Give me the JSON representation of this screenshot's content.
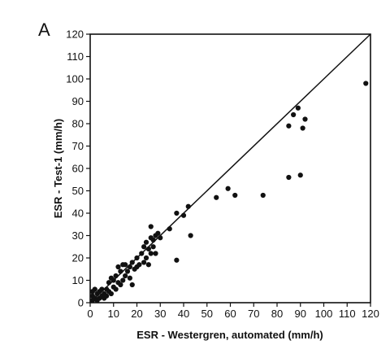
{
  "chart_data": {
    "type": "scatter",
    "panel_label": "A",
    "title": "",
    "xlabel": "ESR - Westergren, automated (mm/h)",
    "ylabel": "ESR - Test-1 (mm/h)",
    "xlim": [
      0,
      120
    ],
    "ylim": [
      0,
      120
    ],
    "xticks": [
      0,
      10,
      20,
      30,
      40,
      50,
      60,
      70,
      80,
      90,
      100,
      110,
      120
    ],
    "yticks": [
      0,
      10,
      20,
      30,
      40,
      50,
      60,
      70,
      80,
      90,
      100,
      110,
      120
    ],
    "grid": false,
    "legend": "none",
    "reference_line": {
      "from": [
        0,
        0
      ],
      "to": [
        120,
        120
      ]
    },
    "points": [
      [
        1,
        1
      ],
      [
        1,
        3
      ],
      [
        1,
        5
      ],
      [
        2,
        2
      ],
      [
        2,
        6
      ],
      [
        3,
        1
      ],
      [
        3,
        4
      ],
      [
        4,
        2
      ],
      [
        4,
        5
      ],
      [
        5,
        3
      ],
      [
        5,
        6
      ],
      [
        6,
        2
      ],
      [
        6,
        4
      ],
      [
        7,
        3
      ],
      [
        7,
        6
      ],
      [
        8,
        5
      ],
      [
        8,
        9
      ],
      [
        9,
        4
      ],
      [
        9,
        11
      ],
      [
        10,
        7
      ],
      [
        10,
        10
      ],
      [
        11,
        6
      ],
      [
        11,
        12
      ],
      [
        12,
        9
      ],
      [
        12,
        16
      ],
      [
        13,
        8
      ],
      [
        13,
        14
      ],
      [
        14,
        10
      ],
      [
        14,
        17
      ],
      [
        15,
        12
      ],
      [
        15,
        17
      ],
      [
        16,
        14
      ],
      [
        17,
        11
      ],
      [
        17,
        16
      ],
      [
        18,
        8
      ],
      [
        18,
        18
      ],
      [
        19,
        15
      ],
      [
        20,
        16
      ],
      [
        20,
        20
      ],
      [
        21,
        17
      ],
      [
        22,
        22
      ],
      [
        23,
        18
      ],
      [
        23,
        25
      ],
      [
        24,
        20
      ],
      [
        24,
        27
      ],
      [
        25,
        24
      ],
      [
        25,
        17
      ],
      [
        26,
        22
      ],
      [
        26,
        29
      ],
      [
        26,
        34
      ],
      [
        27,
        28
      ],
      [
        27,
        25
      ],
      [
        28,
        22
      ],
      [
        28,
        30
      ],
      [
        29,
        31
      ],
      [
        30,
        29
      ],
      [
        34,
        33
      ],
      [
        37,
        19
      ],
      [
        37,
        40
      ],
      [
        40,
        39
      ],
      [
        42,
        43
      ],
      [
        43,
        30
      ],
      [
        54,
        47
      ],
      [
        59,
        51
      ],
      [
        62,
        48
      ],
      [
        74,
        48
      ],
      [
        85,
        79
      ],
      [
        85,
        56
      ],
      [
        87,
        84
      ],
      [
        89,
        87
      ],
      [
        90,
        57
      ],
      [
        91,
        78
      ],
      [
        92,
        82
      ],
      [
        118,
        98
      ]
    ]
  }
}
